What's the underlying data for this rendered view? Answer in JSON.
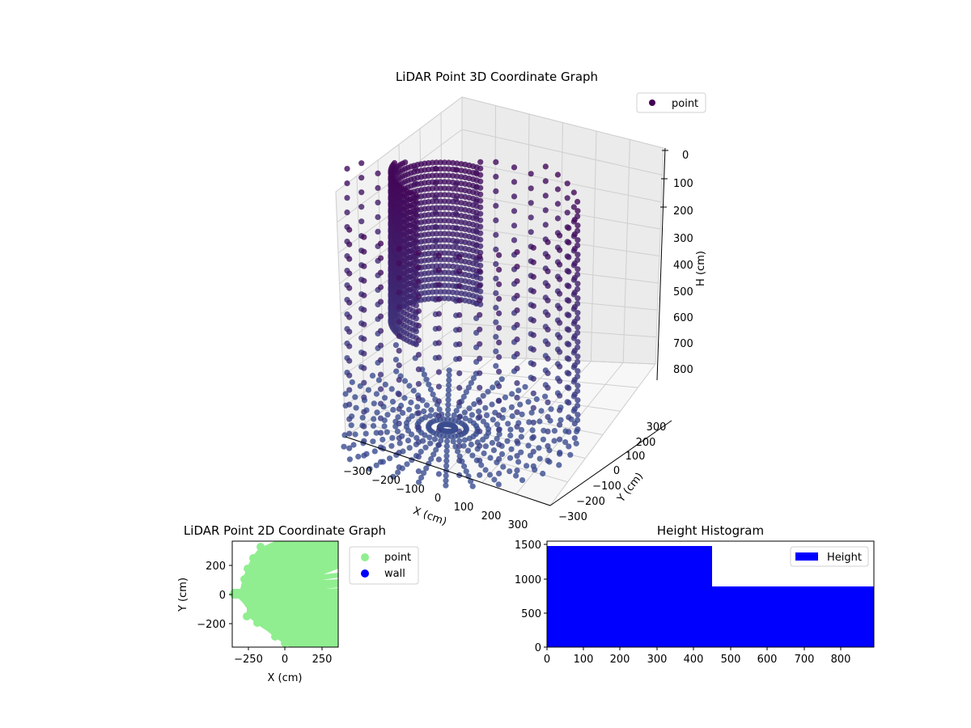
{
  "chart_data": [
    {
      "type": "scatter",
      "projection": "3d",
      "title": "LiDAR Point 3D Coordinate Graph",
      "xlabel": "X (cm)",
      "ylabel": "Y (cm)",
      "zlabel": "H (cm)",
      "xticks": [
        "−300",
        "−200",
        "−100",
        "0",
        "100",
        "200",
        "300"
      ],
      "yticks": [
        "−300",
        "−200",
        "−100",
        "0",
        "100",
        "200",
        "300"
      ],
      "zticks": [
        "0",
        "100",
        "200",
        "300",
        "400",
        "500",
        "600",
        "700",
        "800"
      ],
      "zaxis_inverted": true,
      "grid": true,
      "legend": {
        "entries": [
          "point"
        ],
        "position": "upper right"
      },
      "colormap": "viridis (dark purple to blue-violet by height)",
      "marker_color_top": "#440154",
      "marker_color_bottom": "#3b4d8f",
      "description": "Cylindrical room scan: points form vertical columns around a circular wall with radial floor lines converging at center"
    },
    {
      "type": "scatter",
      "title": "LiDAR Point 2D Coordinate Graph",
      "xlabel": "X (cm)",
      "ylabel": "Y (cm)",
      "xticks": [
        "−250",
        "0",
        "250"
      ],
      "yticks": [
        "−200",
        "0",
        "200"
      ],
      "xlim": [
        -350,
        350
      ],
      "ylim": [
        -350,
        350
      ],
      "legend": {
        "entries": [
          "point",
          "wall"
        ],
        "position": "outside right"
      },
      "series": [
        {
          "name": "point",
          "color": "#90ee90"
        },
        {
          "name": "wall",
          "color": "#0000ff"
        }
      ]
    },
    {
      "type": "bar",
      "subtype": "histogram",
      "title": "Height Histogram",
      "xlabel": "",
      "ylabel": "",
      "bins": [
        [
          0,
          450
        ],
        [
          450,
          890
        ]
      ],
      "values": [
        1470,
        890
      ],
      "xticks": [
        "0",
        "100",
        "200",
        "300",
        "400",
        "500",
        "600",
        "700",
        "800"
      ],
      "yticks": [
        "0",
        "500",
        "1000",
        "1500"
      ],
      "xlim": [
        0,
        890
      ],
      "ylim": [
        0,
        1550
      ],
      "color": "#0000ff",
      "legend": {
        "entries": [
          "Height"
        ],
        "position": "upper right"
      }
    }
  ],
  "plot3d": {
    "title": "LiDAR Point 3D Coordinate Graph",
    "legend_label": "point",
    "xlabel": "X (cm)",
    "ylabel": "Y (cm)",
    "zlabel": "H (cm)",
    "xticks": [
      "−300",
      "−200",
      "−100",
      "0",
      "100",
      "200",
      "300"
    ],
    "yticks": [
      "−300",
      "−200",
      "−100",
      "0",
      "100",
      "200",
      "300"
    ],
    "zticks": [
      "0",
      "100",
      "200",
      "300",
      "400",
      "500",
      "600",
      "700",
      "800"
    ]
  },
  "plot2d": {
    "title": "LiDAR Point 2D Coordinate Graph",
    "xlabel": "X (cm)",
    "ylabel": "Y (cm)",
    "xticks": [
      "−250",
      "0",
      "250"
    ],
    "yticks": [
      "200",
      "0",
      "−200"
    ],
    "legend": [
      "point",
      "wall"
    ]
  },
  "hist": {
    "title": "Height Histogram",
    "legend_label": "Height",
    "xticks": [
      "0",
      "100",
      "200",
      "300",
      "400",
      "500",
      "600",
      "700",
      "800"
    ],
    "yticks": [
      "1500",
      "1000",
      "500",
      "0"
    ]
  }
}
